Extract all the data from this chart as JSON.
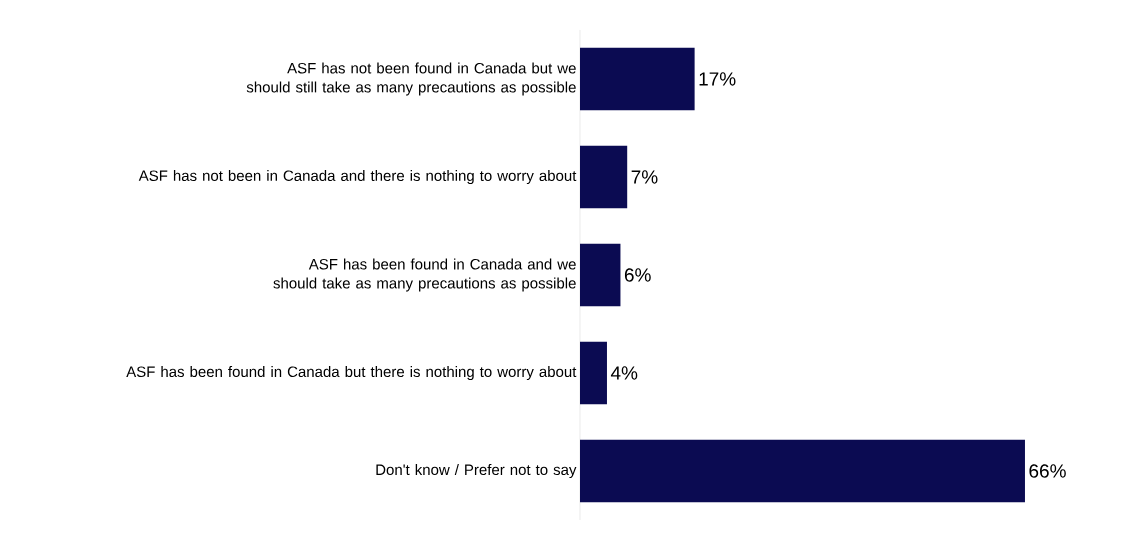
{
  "chart_data": {
    "type": "bar",
    "orientation": "horizontal",
    "categories": [
      "ASF has not been found in Canada but we should still take as many precautions as possible",
      "ASF has not been in Canada and there is nothing to worry about",
      "ASF has been found in Canada and we should take as many precautions as possible",
      "ASF has been found in Canada but there is nothing to worry about",
      "Don't know / Prefer not to say"
    ],
    "values": [
      17,
      7,
      6,
      4,
      66
    ],
    "value_labels": [
      "17%",
      "7%",
      "6%",
      "4%",
      "66%"
    ],
    "color": "#0b0b52"
  }
}
